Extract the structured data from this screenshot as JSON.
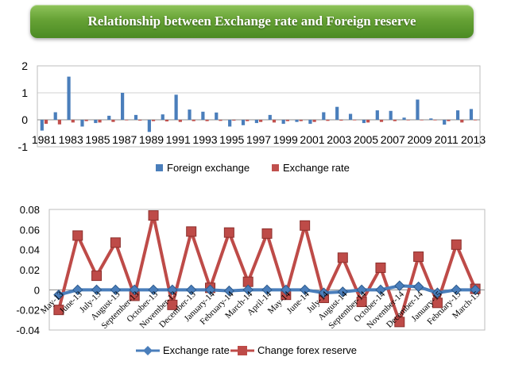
{
  "header": {
    "title": "Relationship between Exchange rate and Foreign reserve"
  },
  "colors": {
    "foreign_exchange": "#4a7ebb",
    "exchange_rate_bar": "#c0504d",
    "exchange_rate_line": "#4a7ebb",
    "change_forex": "#be4b48"
  },
  "chart_data": [
    {
      "type": "bar",
      "title": "",
      "xlabel": "",
      "ylabel": "",
      "ylim": [
        -1,
        2
      ],
      "y_ticks": [
        "2",
        "1",
        "0",
        "-1"
      ],
      "legend_position": "bottom",
      "categories": [
        "1981",
        "1982",
        "1983",
        "1984",
        "1985",
        "1986",
        "1987",
        "1988",
        "1989",
        "1990",
        "1991",
        "1992",
        "1993",
        "1994",
        "1995",
        "1996",
        "1997",
        "1998",
        "1999",
        "2000",
        "2001",
        "2002",
        "2003",
        "2004",
        "2005",
        "2006",
        "2007",
        "2008",
        "2009",
        "2010",
        "2011",
        "2012",
        "2013"
      ],
      "x_tick_labels": [
        "1981",
        "1983",
        "1985",
        "1987",
        "1989",
        "1991",
        "1993",
        "1995",
        "1997",
        "1999",
        "2001",
        "2003",
        "2005",
        "2007",
        "2009",
        "2011",
        "2013"
      ],
      "series": [
        {
          "name": "Foreign exchange",
          "values": [
            -0.4,
            0.28,
            1.6,
            -0.25,
            -0.12,
            0.15,
            1.0,
            0.18,
            -0.45,
            0.2,
            0.93,
            0.38,
            0.3,
            0.27,
            -0.25,
            -0.2,
            -0.12,
            0.18,
            -0.15,
            -0.08,
            -0.15,
            0.28,
            0.48,
            0.22,
            -0.12,
            0.35,
            0.33,
            0.08,
            0.75,
            0.05,
            -0.18,
            0.35,
            0.4
          ]
        },
        {
          "name": "Exchange rate",
          "values": [
            -0.15,
            -0.17,
            -0.1,
            -0.05,
            -0.1,
            -0.08,
            -0.02,
            -0.03,
            -0.05,
            -0.06,
            -0.08,
            -0.05,
            -0.05,
            -0.04,
            -0.03,
            -0.05,
            -0.08,
            -0.1,
            -0.05,
            -0.05,
            -0.08,
            -0.04,
            -0.03,
            -0.02,
            -0.1,
            -0.08,
            -0.05,
            -0.02,
            -0.02,
            -0.02,
            -0.05,
            -0.1,
            -0.02
          ]
        }
      ]
    },
    {
      "type": "line",
      "title": "",
      "xlabel": "",
      "ylabel": "",
      "ylim": [
        -0.04,
        0.08
      ],
      "y_ticks": [
        "0.08",
        "0.06",
        "0.04",
        "0.02",
        "0",
        "-0.02",
        "-0.04"
      ],
      "legend_position": "bottom",
      "categories": [
        "May-13",
        "June-13",
        "July-13",
        "August-13",
        "September-13",
        "October-13",
        "November-13",
        "December-13",
        "January-14",
        "February-14",
        "March-14",
        "April-14",
        "May-14",
        "June-14",
        "July-14",
        "August-14",
        "September-14",
        "October-14",
        "November-14",
        "December-14",
        "January-15",
        "February-15",
        "March-15"
      ],
      "series": [
        {
          "name": "Exchange rate",
          "values": [
            -0.005,
            0.0,
            0.0,
            0.0,
            0.0,
            0.0,
            0.0,
            0.0,
            0.0,
            -0.001,
            0.0,
            0.0,
            0.0,
            0.0,
            -0.003,
            -0.002,
            0.0,
            0.0,
            0.004,
            0.003,
            -0.003,
            0.0,
            0.0
          ]
        },
        {
          "name": "Change forex reserve",
          "values": [
            -0.02,
            0.054,
            0.014,
            0.047,
            -0.006,
            0.074,
            -0.015,
            0.058,
            0.002,
            0.057,
            0.008,
            0.056,
            -0.005,
            0.064,
            -0.008,
            0.032,
            -0.012,
            0.022,
            -0.032,
            0.033,
            -0.013,
            0.045,
            0.001
          ]
        }
      ]
    }
  ]
}
